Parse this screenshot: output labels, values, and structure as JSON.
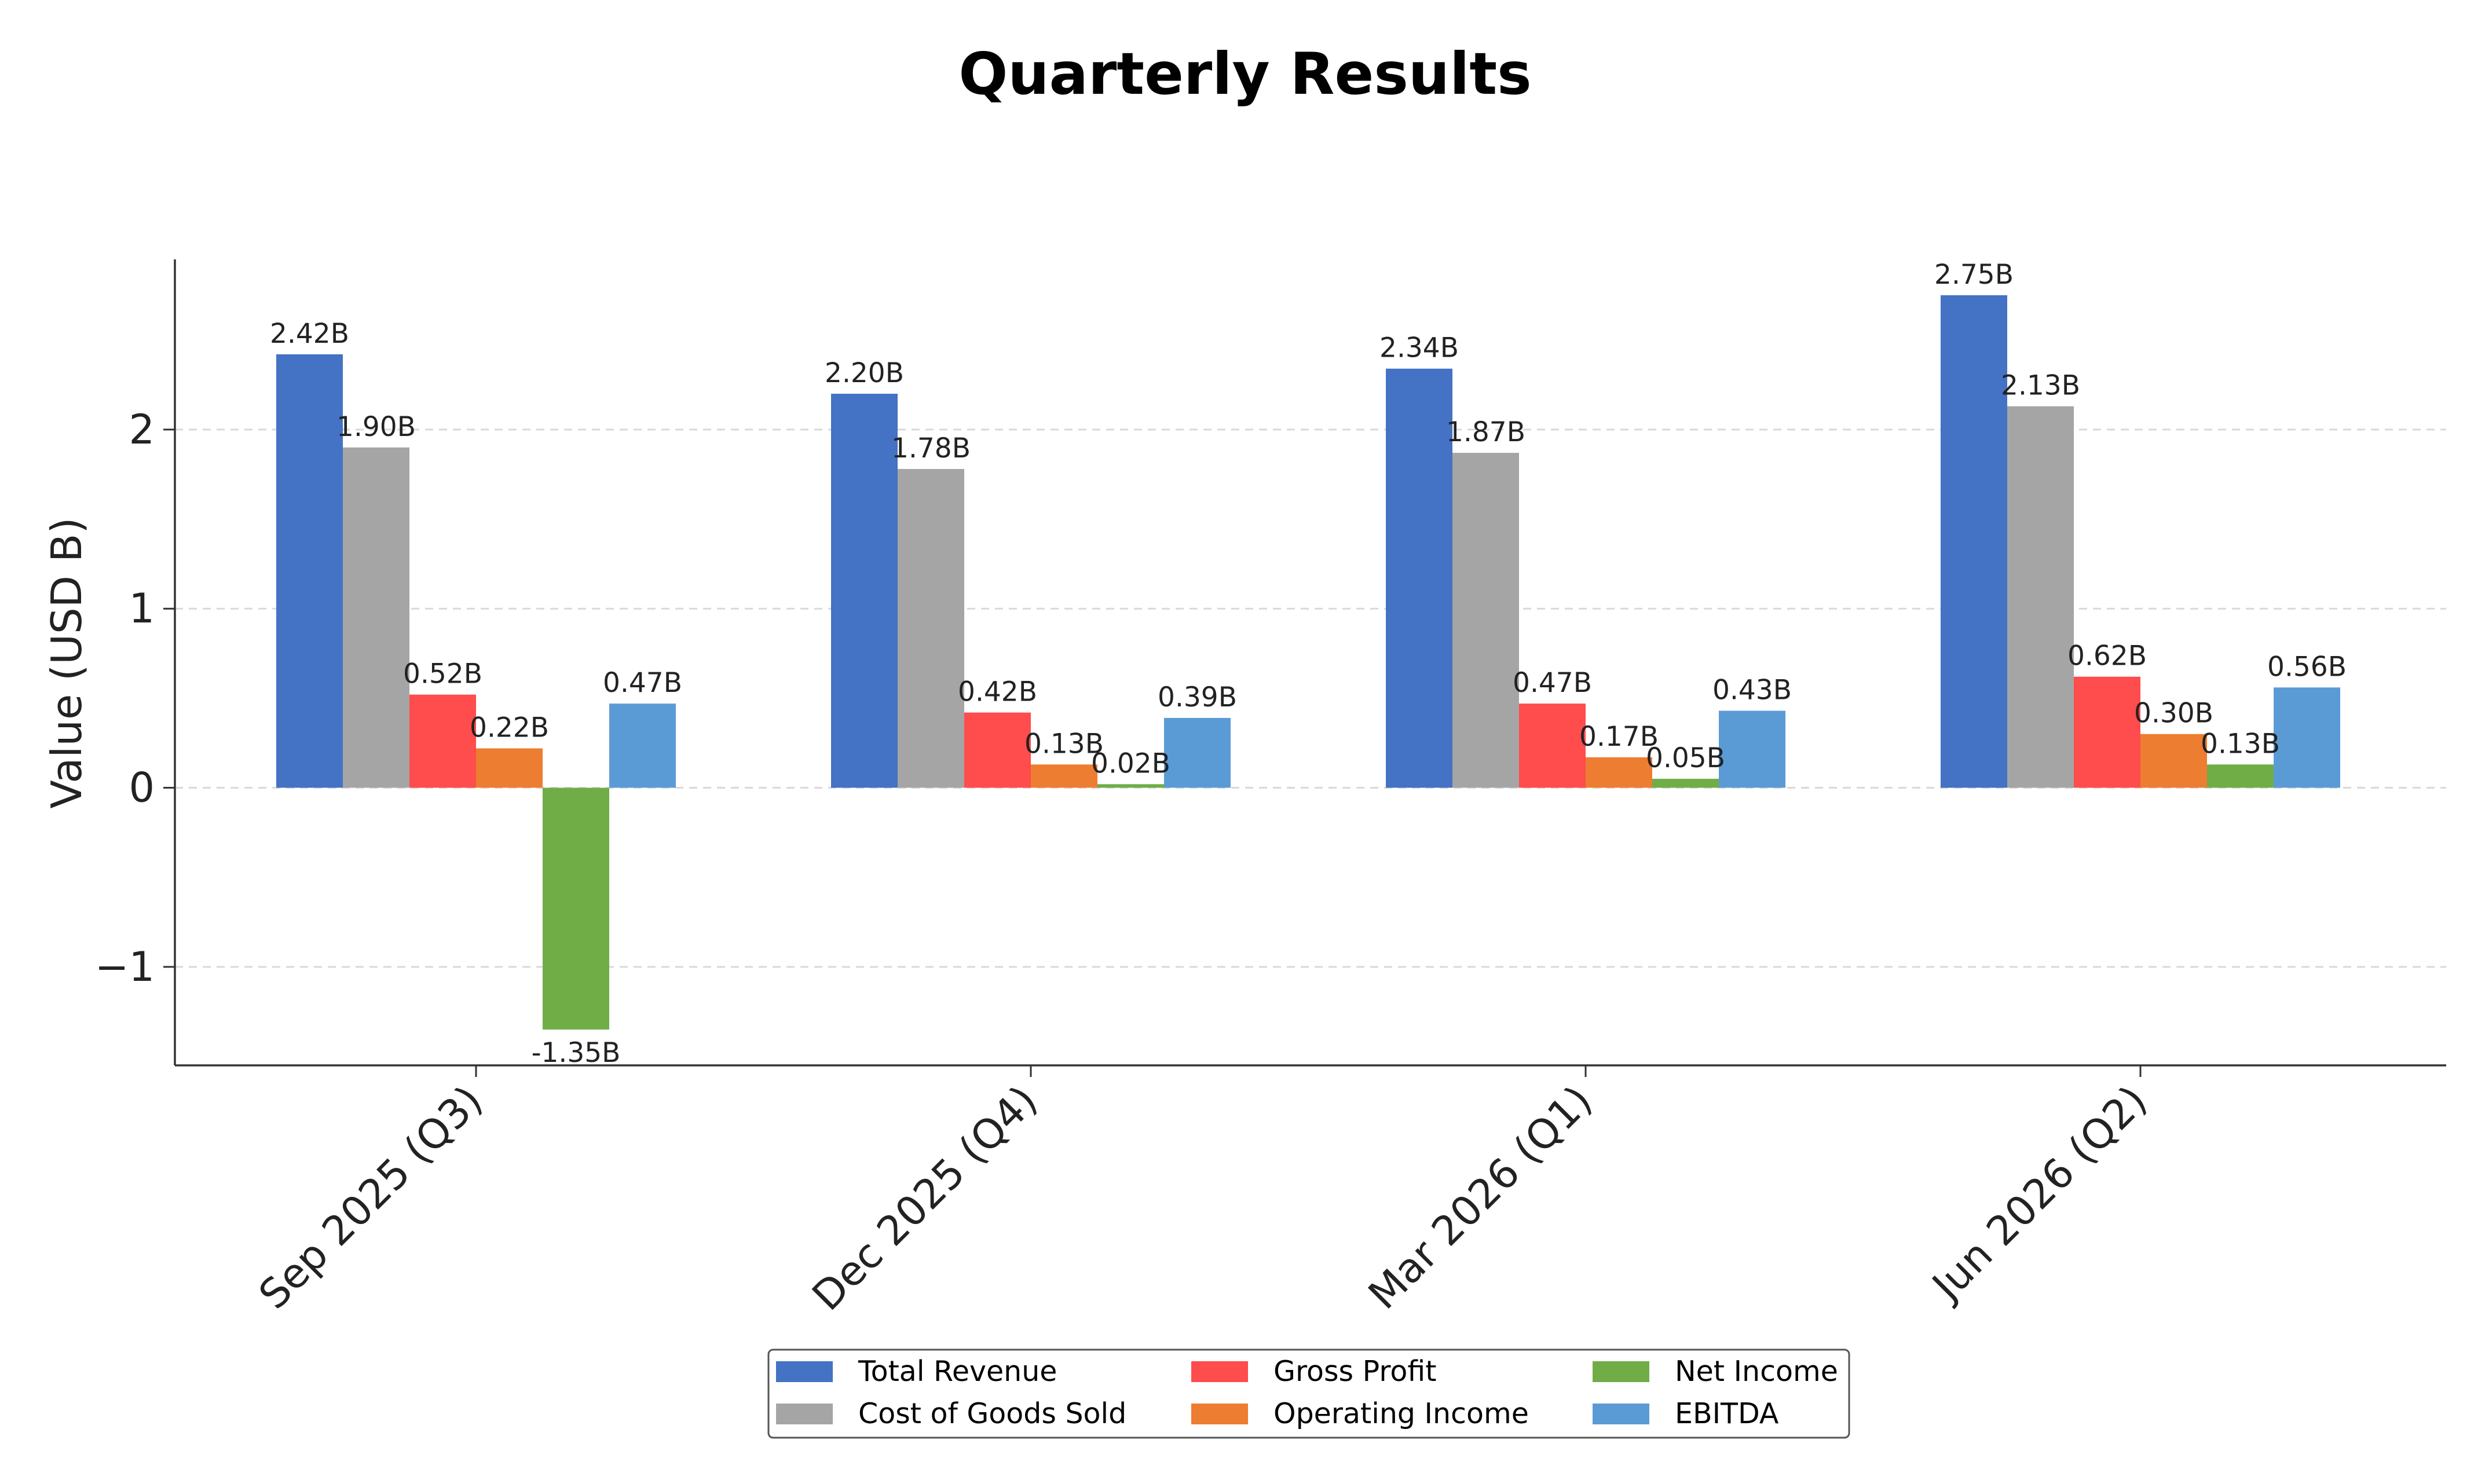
{
  "chart_data": {
    "type": "bar",
    "title": "Quarterly Results",
    "xlabel": "",
    "ylabel": "Value (USD B)",
    "categories": [
      "Sep 2025 (Q3)",
      "Dec 2025 (Q4)",
      "Mar 2026 (Q1)",
      "Jun 2026 (Q2)"
    ],
    "series": [
      {
        "name": "Total Revenue",
        "color": "#4472C4",
        "values": [
          2.42,
          2.2,
          2.34,
          2.75
        ],
        "labels": [
          "2.42B",
          "2.20B",
          "2.34B",
          "2.75B"
        ]
      },
      {
        "name": "Cost of Goods Sold",
        "color": "#A5A5A5",
        "values": [
          1.9,
          1.78,
          1.87,
          2.13
        ],
        "labels": [
          "1.90B",
          "1.78B",
          "1.87B",
          "2.13B"
        ]
      },
      {
        "name": "Gross Profit",
        "color": "#FF4C4C",
        "values": [
          0.52,
          0.42,
          0.47,
          0.62
        ],
        "labels": [
          "0.52B",
          "0.42B",
          "0.47B",
          "0.62B"
        ]
      },
      {
        "name": "Operating Income",
        "color": "#ED7D31",
        "values": [
          0.22,
          0.13,
          0.17,
          0.3
        ],
        "labels": [
          "0.22B",
          "0.13B",
          "0.17B",
          "0.30B"
        ]
      },
      {
        "name": "Net Income",
        "color": "#70AD47",
        "values": [
          -1.35,
          0.02,
          0.05,
          0.13
        ],
        "labels": [
          "-1.35B",
          "0.02B",
          "0.05B",
          "0.13B"
        ]
      },
      {
        "name": "EBITDA",
        "color": "#5B9BD5",
        "values": [
          0.47,
          0.39,
          0.43,
          0.56
        ],
        "labels": [
          "0.47B",
          "0.39B",
          "0.43B",
          "0.56B"
        ]
      }
    ],
    "yticks": [
      -1,
      0,
      1,
      2
    ],
    "ytick_labels": [
      "−1",
      "0",
      "1",
      "2"
    ],
    "ylim": [
      -1.55,
      2.95
    ],
    "grid": "y-dashed",
    "legend_position": "bottom-center",
    "legend_columns": 3
  }
}
